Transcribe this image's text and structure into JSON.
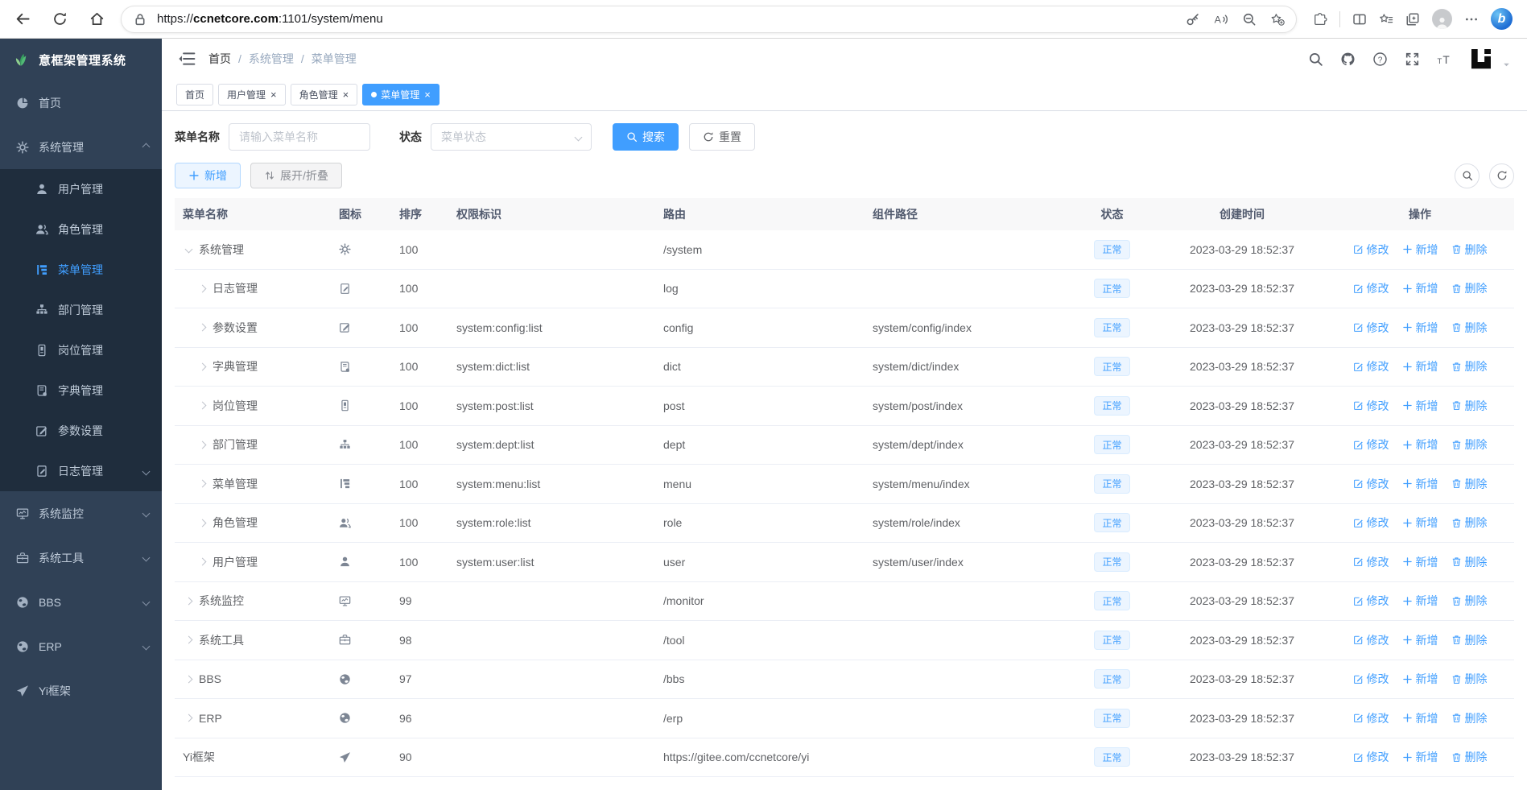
{
  "browser": {
    "nav_icons": [
      "back-icon",
      "refresh-icon",
      "home-icon"
    ],
    "lock_icon": "lock-icon",
    "url_prefix": "https://",
    "url_domain": "ccnetcore.com",
    "url_path": ":1101/system/menu",
    "pill_icons": [
      "key-icon",
      "read-aloud-icon",
      "zoom-out-icon",
      "favorite-add-icon"
    ],
    "right_icons": [
      "extensions-icon",
      "split-screen-icon",
      "favorites-icon",
      "collections-icon"
    ],
    "more_icon": "more-icon",
    "bing_label": "b"
  },
  "sidebar": {
    "title": "意框架管理系统",
    "logo_icon": "plant-logo-icon",
    "items": [
      {
        "id": "home",
        "label": "首页",
        "icon": "dashboard-icon",
        "level": "top",
        "chevron": ""
      },
      {
        "id": "system",
        "label": "系统管理",
        "icon": "gear-icon",
        "level": "top",
        "chevron": "up"
      },
      {
        "id": "user",
        "label": "用户管理",
        "icon": "user-icon",
        "level": "sub",
        "chevron": ""
      },
      {
        "id": "role",
        "label": "角色管理",
        "icon": "users-icon",
        "level": "sub",
        "chevron": ""
      },
      {
        "id": "menu",
        "label": "菜单管理",
        "icon": "menu-tree-icon",
        "level": "sub",
        "chevron": "",
        "active": true
      },
      {
        "id": "dept",
        "label": "部门管理",
        "icon": "org-tree-icon",
        "level": "sub",
        "chevron": ""
      },
      {
        "id": "post",
        "label": "岗位管理",
        "icon": "post-badge-icon",
        "level": "sub",
        "chevron": ""
      },
      {
        "id": "dict",
        "label": "字典管理",
        "icon": "dict-book-icon",
        "level": "sub",
        "chevron": ""
      },
      {
        "id": "config",
        "label": "参数设置",
        "icon": "edit-square-icon",
        "level": "sub",
        "chevron": ""
      },
      {
        "id": "log",
        "label": "日志管理",
        "icon": "log-doc-icon",
        "level": "sub",
        "chevron": "down"
      },
      {
        "id": "monitor",
        "label": "系统监控",
        "icon": "monitor-icon",
        "level": "top",
        "chevron": "down"
      },
      {
        "id": "tool",
        "label": "系统工具",
        "icon": "toolbox-icon",
        "level": "top",
        "chevron": "down"
      },
      {
        "id": "bbs",
        "label": "BBS",
        "icon": "globe-icon",
        "level": "top",
        "chevron": "down"
      },
      {
        "id": "erp",
        "label": "ERP",
        "icon": "globe-icon",
        "level": "top",
        "chevron": "down"
      },
      {
        "id": "yi",
        "label": "Yi框架",
        "icon": "send-icon",
        "level": "top",
        "chevron": ""
      }
    ]
  },
  "header": {
    "collapse_icon": "collapse-sidebar-icon",
    "breadcrumb": [
      "首页",
      "系统管理",
      "菜单管理"
    ],
    "icons": [
      "search-icon",
      "github-icon",
      "help-icon",
      "fullscreen-icon",
      "font-size-icon"
    ],
    "logo_icon": "yi-logo",
    "caret_icon": "chevron-down-icon"
  },
  "tabs": [
    {
      "label": "首页",
      "closable": false,
      "active": false
    },
    {
      "label": "用户管理",
      "closable": true,
      "active": false
    },
    {
      "label": "角色管理",
      "closable": true,
      "active": false
    },
    {
      "label": "菜单管理",
      "closable": true,
      "active": true
    }
  ],
  "filters": {
    "name_label": "菜单名称",
    "name_placeholder": "请输入菜单名称",
    "status_label": "状态",
    "status_placeholder": "菜单状态",
    "search": "搜索",
    "reset": "重置"
  },
  "toolbar": {
    "add": "新增",
    "toggle": "展开/折叠",
    "right_icons": [
      "search-icon",
      "refresh-icon"
    ]
  },
  "table": {
    "columns": [
      "菜单名称",
      "图标",
      "排序",
      "权限标识",
      "路由",
      "组件路径",
      "状态",
      "创建时间",
      "操作"
    ],
    "actions": {
      "edit": "修改",
      "add": "新增",
      "delete": "删除"
    },
    "rows": [
      {
        "name": "系统管理",
        "icon": "gear-icon",
        "indent": 0,
        "expander": "down",
        "order": "100",
        "perm": "",
        "route": "/system",
        "component": "",
        "status": "正常",
        "created": "2023-03-29 18:52:37"
      },
      {
        "name": "日志管理",
        "icon": "log-doc-icon",
        "indent": 1,
        "expander": "right",
        "order": "100",
        "perm": "",
        "route": "log",
        "component": "",
        "status": "正常",
        "created": "2023-03-29 18:52:37"
      },
      {
        "name": "参数设置",
        "icon": "edit-square-icon",
        "indent": 1,
        "expander": "right",
        "order": "100",
        "perm": "system:config:list",
        "route": "config",
        "component": "system/config/index",
        "status": "正常",
        "created": "2023-03-29 18:52:37"
      },
      {
        "name": "字典管理",
        "icon": "dict-book-icon",
        "indent": 1,
        "expander": "right",
        "order": "100",
        "perm": "system:dict:list",
        "route": "dict",
        "component": "system/dict/index",
        "status": "正常",
        "created": "2023-03-29 18:52:37"
      },
      {
        "name": "岗位管理",
        "icon": "post-badge-icon",
        "indent": 1,
        "expander": "right",
        "order": "100",
        "perm": "system:post:list",
        "route": "post",
        "component": "system/post/index",
        "status": "正常",
        "created": "2023-03-29 18:52:37"
      },
      {
        "name": "部门管理",
        "icon": "org-tree-icon",
        "indent": 1,
        "expander": "right",
        "order": "100",
        "perm": "system:dept:list",
        "route": "dept",
        "component": "system/dept/index",
        "status": "正常",
        "created": "2023-03-29 18:52:37"
      },
      {
        "name": "菜单管理",
        "icon": "menu-tree-icon",
        "indent": 1,
        "expander": "right",
        "order": "100",
        "perm": "system:menu:list",
        "route": "menu",
        "component": "system/menu/index",
        "status": "正常",
        "created": "2023-03-29 18:52:37"
      },
      {
        "name": "角色管理",
        "icon": "users-icon",
        "indent": 1,
        "expander": "right",
        "order": "100",
        "perm": "system:role:list",
        "route": "role",
        "component": "system/role/index",
        "status": "正常",
        "created": "2023-03-29 18:52:37"
      },
      {
        "name": "用户管理",
        "icon": "user-icon",
        "indent": 1,
        "expander": "right",
        "order": "100",
        "perm": "system:user:list",
        "route": "user",
        "component": "system/user/index",
        "status": "正常",
        "created": "2023-03-29 18:52:37"
      },
      {
        "name": "系统监控",
        "icon": "monitor-icon",
        "indent": 0,
        "expander": "right",
        "order": "99",
        "perm": "",
        "route": "/monitor",
        "component": "",
        "status": "正常",
        "created": "2023-03-29 18:52:37"
      },
      {
        "name": "系统工具",
        "icon": "toolbox-icon",
        "indent": 0,
        "expander": "right",
        "order": "98",
        "perm": "",
        "route": "/tool",
        "component": "",
        "status": "正常",
        "created": "2023-03-29 18:52:37"
      },
      {
        "name": "BBS",
        "icon": "globe-icon",
        "indent": 0,
        "expander": "right",
        "order": "97",
        "perm": "",
        "route": "/bbs",
        "component": "",
        "status": "正常",
        "created": "2023-03-29 18:52:37"
      },
      {
        "name": "ERP",
        "icon": "globe-icon",
        "indent": 0,
        "expander": "right",
        "order": "96",
        "perm": "",
        "route": "/erp",
        "component": "",
        "status": "正常",
        "created": "2023-03-29 18:52:37"
      },
      {
        "name": "Yi框架",
        "icon": "send-icon",
        "indent": 0,
        "expander": "none",
        "order": "90",
        "perm": "",
        "route": "https://gitee.com/ccnetcore/yi",
        "component": "",
        "status": "正常",
        "created": "2023-03-29 18:52:37"
      }
    ]
  },
  "colors": {
    "accent": "#409eff",
    "sidebar_bg": "#304156",
    "submenu_bg": "#1f2d3d",
    "badge_bg": "#ecf5ff",
    "badge_border": "#d9ecff",
    "header_row_bg": "#f8f8f9"
  }
}
